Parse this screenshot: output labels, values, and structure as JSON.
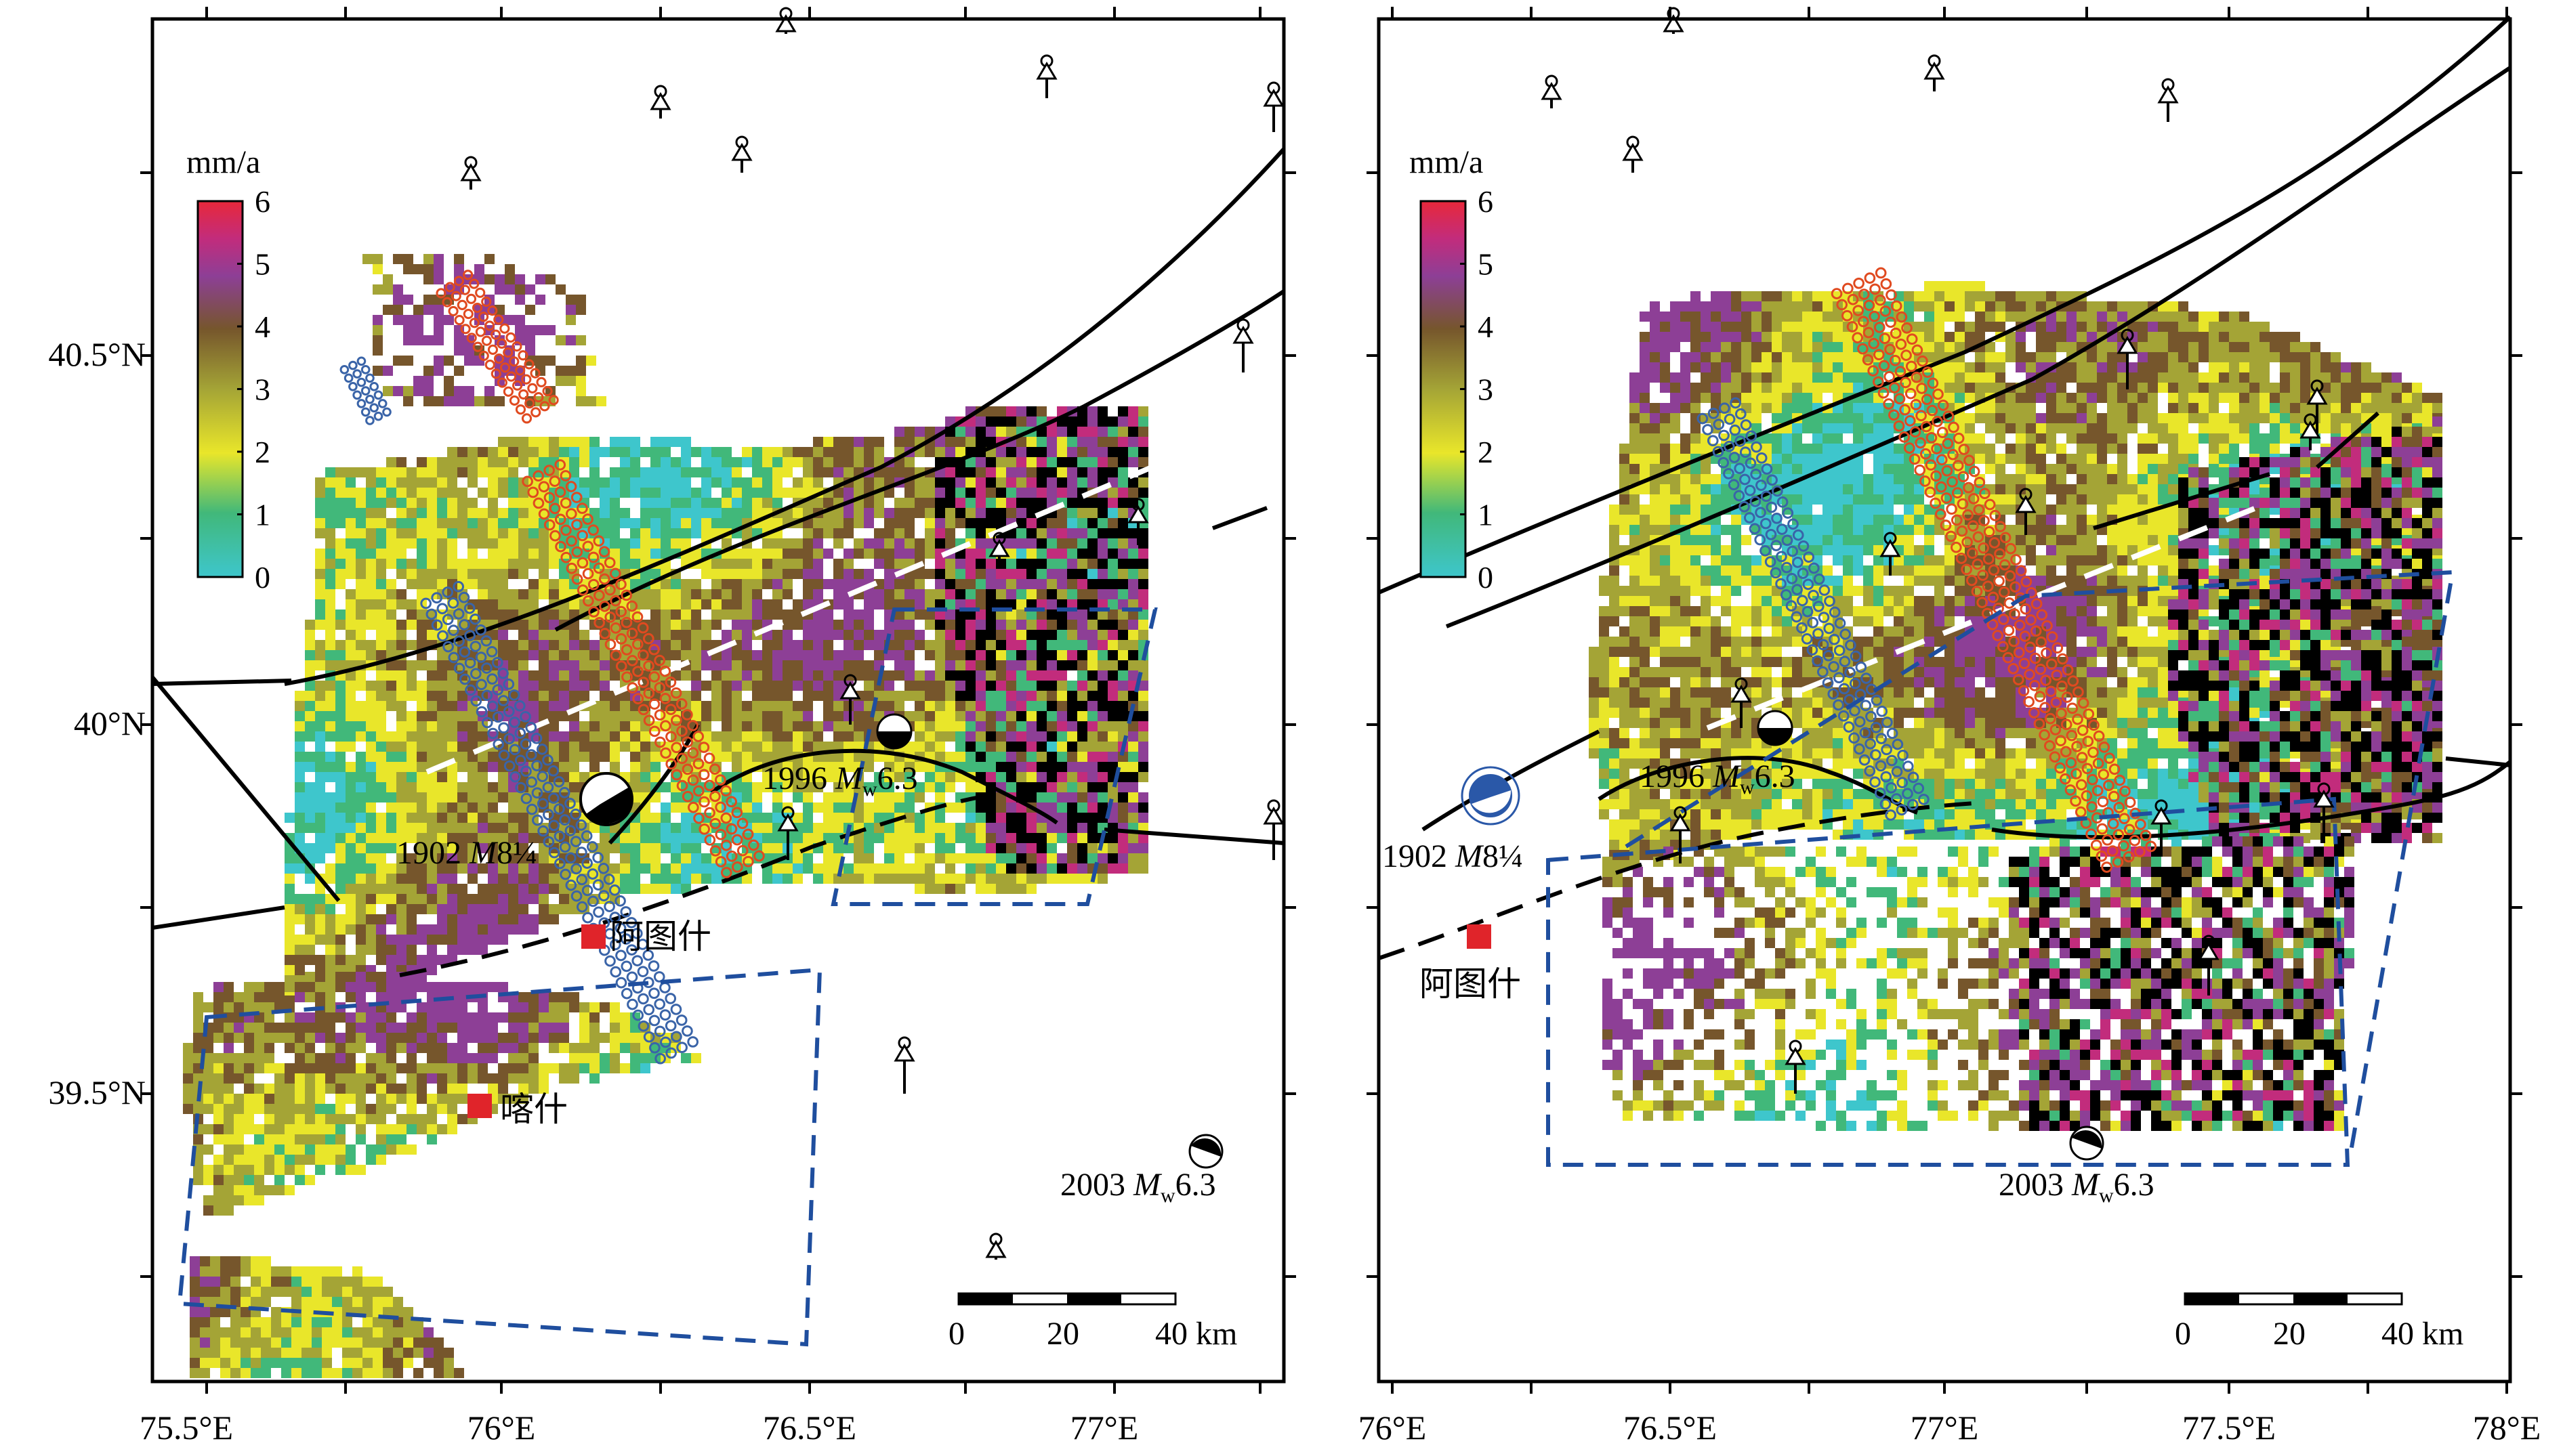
{
  "maps": [
    {
      "id": "left",
      "x_ticks": [
        "75.5°E",
        "76°E",
        "76.5°E",
        "77°E"
      ],
      "y_ticks": [
        "40.5°N",
        "40°N",
        "39.5°N"
      ],
      "colorbar": {
        "unit": "mm/a",
        "labels": [
          "6",
          "5",
          "4",
          "3",
          "2",
          "1",
          "0"
        ]
      },
      "scalebar": {
        "labels": [
          "0",
          "20",
          "40 km"
        ]
      },
      "cities": [
        "阿图什",
        "喀什"
      ],
      "events": [
        {
          "year": "1902",
          "mag_prefix": "M",
          "mag_sub": "",
          "mag_value": "8¼"
        },
        {
          "year": "1996",
          "mag_prefix": "M",
          "mag_sub": "w",
          "mag_value": "6.3"
        },
        {
          "year": "2003",
          "mag_prefix": "M",
          "mag_sub": "w",
          "mag_value": "6.3"
        }
      ]
    },
    {
      "id": "right",
      "x_ticks": [
        "76°E",
        "76.5°E",
        "77°E",
        "77.5°E",
        "78°E"
      ],
      "y_ticks": [],
      "colorbar": {
        "unit": "mm/a",
        "labels": [
          "6",
          "5",
          "4",
          "3",
          "2",
          "1",
          "0"
        ]
      },
      "scalebar": {
        "labels": [
          "0",
          "20",
          "40 km"
        ]
      },
      "cities": [
        "阿图什"
      ],
      "events": [
        {
          "year": "1902",
          "mag_prefix": "M",
          "mag_sub": "",
          "mag_value": "8¼"
        },
        {
          "year": "1996",
          "mag_prefix": "M",
          "mag_sub": "w",
          "mag_value": "6.3"
        },
        {
          "year": "2003",
          "mag_prefix": "M",
          "mag_sub": "w",
          "mag_value": "6.3"
        }
      ]
    }
  ],
  "colors": {
    "scale": [
      "#3ec6cc",
      "#41b87a",
      "#e9e62a",
      "#a4a436",
      "#76562c",
      "#8d3f96",
      "#c22c7c",
      "#e8283a"
    ],
    "fault": "#000000",
    "region_box": "#1f4e9e",
    "profile_a": "#3a64a8",
    "profile_b": "#e04a20",
    "city": "#e0242a",
    "white_dashed": "#ffffff"
  }
}
